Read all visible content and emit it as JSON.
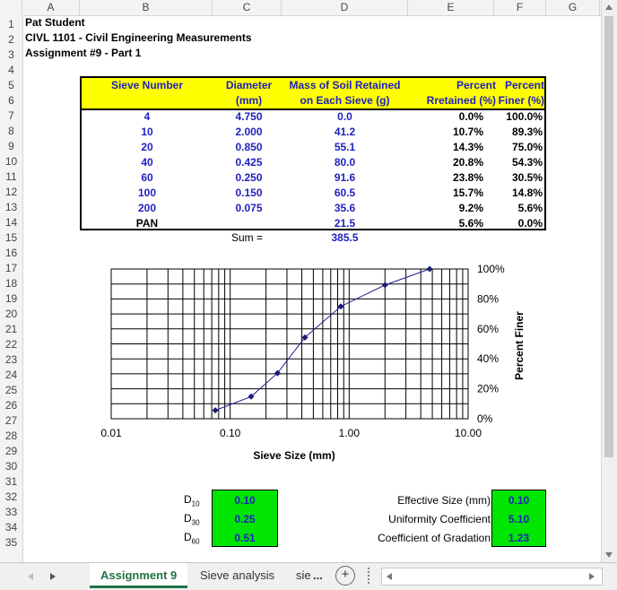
{
  "columns": [
    "A",
    "B",
    "C",
    "D",
    "E",
    "F",
    "G"
  ],
  "rows": [
    "1",
    "2",
    "3",
    "4",
    "5",
    "6",
    "7",
    "8",
    "9",
    "10",
    "11",
    "12",
    "13",
    "14",
    "15",
    "16",
    "17",
    "18",
    "19",
    "20",
    "21",
    "22",
    "23",
    "24",
    "25",
    "26",
    "27",
    "28",
    "29",
    "30",
    "31",
    "32",
    "33",
    "34",
    "35"
  ],
  "header": {
    "name": "Pat Student",
    "course": "CIVL 1101 - Civil Engineering Measurements",
    "assignment": "Assignment #9 - Part 1"
  },
  "table": {
    "headers": {
      "sieve": "Sieve Number",
      "diameter_1": "Diameter",
      "diameter_2": "(mm)",
      "mass_1": "Mass of Soil Retained",
      "mass_2": "on Each Sieve (g)",
      "retained_1": "Percent",
      "retained_2": "Rretained (%)",
      "finer_1": "Percent",
      "finer_2": "Finer (%)"
    },
    "rows": [
      {
        "sieve": "4",
        "diameter": "4.750",
        "mass": "0.0",
        "retained": "0.0%",
        "finer": "100.0%"
      },
      {
        "sieve": "10",
        "diameter": "2.000",
        "mass": "41.2",
        "retained": "10.7%",
        "finer": "89.3%"
      },
      {
        "sieve": "20",
        "diameter": "0.850",
        "mass": "55.1",
        "retained": "14.3%",
        "finer": "75.0%"
      },
      {
        "sieve": "40",
        "diameter": "0.425",
        "mass": "80.0",
        "retained": "20.8%",
        "finer": "54.3%"
      },
      {
        "sieve": "60",
        "diameter": "0.250",
        "mass": "91.6",
        "retained": "23.8%",
        "finer": "30.5%"
      },
      {
        "sieve": "100",
        "diameter": "0.150",
        "mass": "60.5",
        "retained": "15.7%",
        "finer": "14.8%"
      },
      {
        "sieve": "200",
        "diameter": "0.075",
        "mass": "35.6",
        "retained": "9.2%",
        "finer": "5.6%"
      },
      {
        "sieve": "PAN",
        "diameter": "",
        "mass": "21.5",
        "retained": "5.6%",
        "finer": "0.0%"
      }
    ],
    "sum_label": "Sum =",
    "sum_value": "385.5"
  },
  "chart_data": {
    "type": "scatter",
    "x_scale": "log",
    "xlim": [
      0.01,
      10
    ],
    "ylim": [
      0,
      100
    ],
    "xlabel": "Sieve Size (mm)",
    "ylabel": "Percent Finer",
    "x_ticks": [
      "0.01",
      "0.10",
      "1.00",
      "10.00"
    ],
    "y_ticks": [
      "0%",
      "20%",
      "40%",
      "60%",
      "80%",
      "100%"
    ],
    "grid": true,
    "series": [
      {
        "x": [
          4.75,
          2.0,
          0.85,
          0.425,
          0.25,
          0.15,
          0.075
        ],
        "y": [
          100,
          89.3,
          75.0,
          54.3,
          30.5,
          14.8,
          5.6
        ]
      }
    ],
    "line_color": "#1f1f8f"
  },
  "results": {
    "d10_label": "D10",
    "d30_label": "D30",
    "d60_label": "D60",
    "d10": "0.10",
    "d30": "0.25",
    "d60": "0.51",
    "effective_label": "Effective Size (mm)",
    "uniformity_label": "Uniformity Coefficient",
    "gradation_label": "Coefficient of Gradation",
    "effective": "0.10",
    "uniformity": "5.10",
    "gradation": "1.23"
  },
  "tabs": {
    "active": "Assignment 9",
    "second": "Sieve analysis",
    "third": "sie",
    "more": "...",
    "add": "+"
  }
}
